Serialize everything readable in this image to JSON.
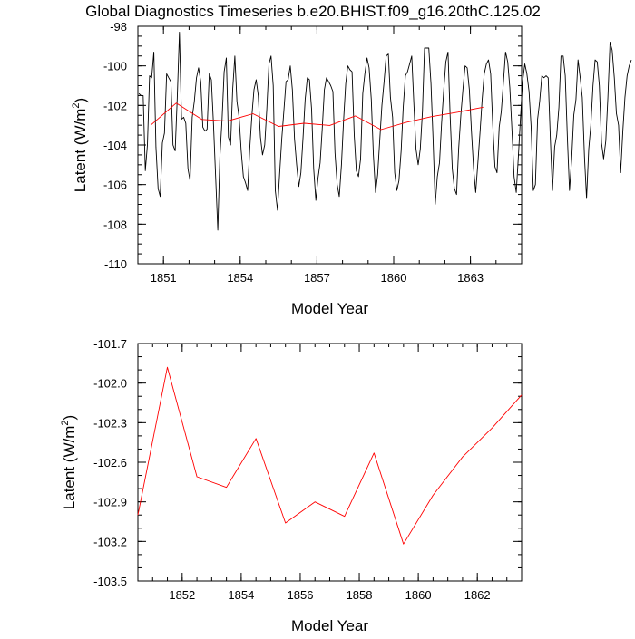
{
  "title": "Global Diagnostics Timeseries b.e20.BHIST.f09_g16.20thC.125.02",
  "chart_data": [
    {
      "type": "line",
      "name": "monthly-and-annual",
      "xlabel": "Model Year",
      "ylabel_main": "Latent (W/m",
      "ylabel_sup": "2",
      "ylabel_close": ")",
      "xlim": [
        1850.0,
        1865.0
      ],
      "ylim": [
        -110,
        -98
      ],
      "xticks": [
        1851,
        1854,
        1857,
        1860,
        1863
      ],
      "xtick_labels": [
        "1851",
        "1854",
        "1857",
        "1860",
        "1863"
      ],
      "yticks": [
        -110,
        -108,
        -106,
        -104,
        -102,
        -100,
        -98
      ],
      "ytick_labels": [
        "-110",
        "-108",
        "-106",
        "-104",
        "-102",
        "-100",
        "-98"
      ],
      "series": [
        {
          "name": "monthly",
          "color": "#000000",
          "x_start": 1850.04,
          "x_step": 0.0833333,
          "values": [
            -101.4,
            -101.5,
            -101.5,
            -105.3,
            -104.0,
            -100.5,
            -100.6,
            -99.3,
            -104.1,
            -106.2,
            -106.6,
            -103.9,
            -103.4,
            -100.4,
            -100.6,
            -100.8,
            -104.0,
            -104.3,
            -101.6,
            -98.3,
            -102.7,
            -102.6,
            -102.9,
            -105.2,
            -105.8,
            -102.6,
            -101.8,
            -100.6,
            -100.1,
            -100.8,
            -103.1,
            -103.3,
            -103.2,
            -100.4,
            -100.7,
            -103.0,
            -105.6,
            -108.3,
            -104.6,
            -102.7,
            -100.3,
            -99.6,
            -103.6,
            -104.0,
            -101.2,
            -99.5,
            -101.8,
            -102.6,
            -104.3,
            -105.6,
            -105.9,
            -106.3,
            -104.2,
            -102.5,
            -101.2,
            -100.7,
            -101.5,
            -103.6,
            -104.5,
            -104.0,
            -102.2,
            -99.9,
            -99.5,
            -101.0,
            -106.3,
            -107.3,
            -105.5,
            -103.7,
            -102.3,
            -100.8,
            -100.7,
            -100.0,
            -101.2,
            -103.7,
            -105.0,
            -106.1,
            -105.4,
            -103.6,
            -101.7,
            -100.6,
            -100.7,
            -102.2,
            -105.2,
            -106.8,
            -105.7,
            -104.9,
            -103.2,
            -101.2,
            -100.6,
            -100.8,
            -101.0,
            -101.3,
            -104.4,
            -106.0,
            -106.6,
            -105.0,
            -102.8,
            -100.9,
            -100.0,
            -100.2,
            -100.3,
            -103.5,
            -105.3,
            -105.6,
            -104.7,
            -101.4,
            -100.4,
            -99.6,
            -100.1,
            -101.7,
            -104.5,
            -106.4,
            -105.5,
            -103.7,
            -102.0,
            -100.8,
            -99.5,
            -99.4,
            -101.6,
            -102.6,
            -105.4,
            -106.3,
            -105.8,
            -104.3,
            -102.1,
            -100.5,
            -100.3,
            -99.9,
            -99.5,
            -102.0,
            -104.2,
            -105.0,
            -104.2,
            -102.3,
            -99.1,
            -99.1,
            -99.1,
            -100.9,
            -103.7,
            -107.0,
            -105.6,
            -104.9,
            -102.9,
            -101.2,
            -99.8,
            -99.3,
            -102.5,
            -105.2,
            -106.2,
            -106.5,
            -104.2,
            -102.5,
            -101.2,
            -100.0,
            -100.1,
            -101.2,
            -103.3,
            -105.2,
            -106.4,
            -104.9,
            -103.4,
            -101.7,
            -100.4,
            -99.9,
            -99.7,
            -100.4,
            -103.0,
            -105.1,
            -105.4,
            -103.1,
            -102.3,
            -100.8,
            -99.3,
            -99.8,
            -101.1,
            -103.3,
            -105.6,
            -106.4,
            -104.6,
            -102.6,
            -100.8,
            -99.9,
            -100.4,
            -101.3,
            -103.1,
            -106.3,
            -106.0,
            -102.7,
            -101.8,
            -100.5,
            -100.6,
            -100.5,
            -100.6,
            -103.7,
            -106.3,
            -104.1,
            -103.5,
            -102.1,
            -99.5,
            -99.5,
            -100.5,
            -103.7,
            -106.3,
            -104.7,
            -102.5,
            -101.7,
            -99.7,
            -100.6,
            -101.6,
            -104.6,
            -106.7,
            -104.2,
            -103.0,
            -101.0,
            -99.7,
            -99.8,
            -101.0,
            -103.9,
            -104.7,
            -103.8,
            -101.6,
            -98.8,
            -99.2,
            -100.6,
            -102.4,
            -103.0,
            -105.4,
            -103.3,
            -101.6,
            -100.5,
            -100.0,
            -99.7
          ]
        },
        {
          "name": "annual",
          "color": "#ff0000",
          "x": [
            1850.5,
            1851.5,
            1852.5,
            1853.5,
            1854.5,
            1855.5,
            1856.5,
            1857.5,
            1858.5,
            1859.5,
            1860.5,
            1861.5,
            1862.5,
            1863.5
          ],
          "values": [
            -103.0,
            -101.88,
            -102.71,
            -102.79,
            -102.42,
            -103.06,
            -102.9,
            -103.01,
            -102.53,
            -103.22,
            -102.85,
            -102.56,
            -102.34,
            -102.09
          ]
        }
      ]
    },
    {
      "type": "line",
      "name": "annual-zoom",
      "xlabel": "Model Year",
      "ylabel_main": "Latent (W/m",
      "ylabel_sup": "2",
      "ylabel_close": ")",
      "xlim": [
        1850.5,
        1863.5
      ],
      "ylim": [
        -103.5,
        -101.7
      ],
      "xticks": [
        1852,
        1854,
        1856,
        1858,
        1860,
        1862
      ],
      "xtick_labels": [
        "1852",
        "1854",
        "1856",
        "1858",
        "1860",
        "1862"
      ],
      "yticks": [
        -103.5,
        -103.2,
        -102.9,
        -102.6,
        -102.3,
        -102.0,
        -101.7
      ],
      "ytick_labels": [
        "-103.5",
        "-103.2",
        "-102.9",
        "-102.6",
        "-102.3",
        "-102.0",
        "-101.7"
      ],
      "series": [
        {
          "name": "annual",
          "color": "#ff0000",
          "x": [
            1850.5,
            1851.5,
            1852.5,
            1853.5,
            1854.5,
            1855.5,
            1856.5,
            1857.5,
            1858.5,
            1859.5,
            1860.5,
            1861.5,
            1862.5,
            1863.5
          ],
          "values": [
            -103.0,
            -101.88,
            -102.71,
            -102.79,
            -102.42,
            -103.06,
            -102.9,
            -103.01,
            -102.53,
            -103.22,
            -102.85,
            -102.56,
            -102.34,
            -102.09
          ]
        }
      ]
    }
  ]
}
